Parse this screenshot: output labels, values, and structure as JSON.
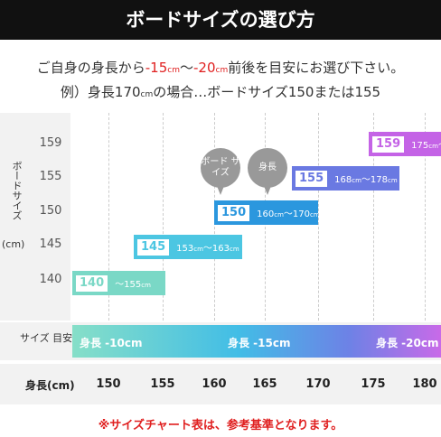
{
  "header": {
    "title": "ボードサイズの選び方"
  },
  "intro": {
    "line1": [
      {
        "text": "ご自身の身長から"
      },
      {
        "text": "-15",
        "red": true
      },
      {
        "text": "cm",
        "red": true,
        "small": true
      },
      {
        "text": "〜"
      },
      {
        "text": "-20",
        "red": true
      },
      {
        "text": "cm",
        "red": true,
        "small": true
      },
      {
        "text": "前後を目安にお選び下さい。"
      }
    ],
    "line2": [
      {
        "text": "例）身長170"
      },
      {
        "text": "cm",
        "small": true
      },
      {
        "text": "の場合…ボードサイズ150または155"
      }
    ]
  },
  "chart": {
    "y_axis_label": "ボードサイズ",
    "y_axis_unit": "(cm)",
    "board_sizes": [
      "159",
      "155",
      "150",
      "145",
      "140"
    ],
    "bars": [
      {
        "size": "140",
        "color": "#7ad8c6",
        "range": [
          {
            "text": "〜155"
          },
          {
            "text": "cm",
            "small": true
          }
        ]
      },
      {
        "size": "145",
        "color": "#4cc6e2",
        "range": [
          {
            "text": "153"
          },
          {
            "text": "cm",
            "small": true
          },
          {
            "text": "〜163"
          },
          {
            "text": "cm",
            "small": true
          }
        ]
      },
      {
        "size": "150",
        "color": "#2b97de",
        "range": [
          {
            "text": "160"
          },
          {
            "text": "cm",
            "small": true
          },
          {
            "text": "〜170"
          },
          {
            "text": "cm",
            "small": true
          }
        ]
      },
      {
        "size": "155",
        "color": "#6a79e2",
        "range": [
          {
            "text": "168"
          },
          {
            "text": "cm",
            "small": true
          },
          {
            "text": "〜178"
          },
          {
            "text": "cm",
            "small": true
          }
        ]
      },
      {
        "size": "159",
        "color": "#c463e6",
        "range": [
          {
            "text": "175"
          },
          {
            "text": "cm",
            "small": true
          },
          {
            "text": "〜"
          }
        ]
      }
    ],
    "callouts": [
      "ボード サイズ",
      "身長"
    ],
    "guide_label": "サイズ 目安",
    "guide": [
      "身長 -10cm",
      "身長 -15cm",
      "身長 -20cm"
    ],
    "height_label": "身長(cm)",
    "heights": [
      "150",
      "155",
      "160",
      "165",
      "170",
      "175",
      "180"
    ]
  },
  "footer": {
    "note": "※サイズチャート表は、参考基準となります。"
  }
}
